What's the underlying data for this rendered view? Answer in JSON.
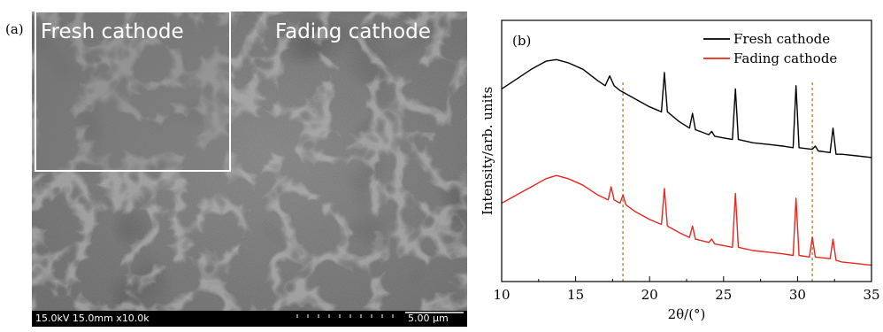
{
  "panel_a": {
    "label": "(a)",
    "inset_caption": "Fresh cathode",
    "main_caption": "Fading cathode",
    "scan_info": "15.0kV 15.0mm x10.0k",
    "scale_bar": "5.00 μm"
  },
  "chart_data": {
    "type": "line",
    "panel_label": "(b)",
    "xlabel": "2θ/(°)",
    "ylabel": "Intensity/arb. units",
    "xlim": [
      10,
      35
    ],
    "xticks": [
      10,
      15,
      20,
      25,
      30,
      35
    ],
    "grid": false,
    "legend_position": "top-right",
    "y_ticks_shown": false,
    "reference_lines_x": [
      18.2,
      31.0
    ],
    "series": [
      {
        "name": "Fresh cathode",
        "color": "#000000",
        "points": [
          [
            10,
            0.58
          ],
          [
            11,
            0.64
          ],
          [
            12,
            0.7
          ],
          [
            13,
            0.75
          ],
          [
            13.7,
            0.76
          ],
          [
            14.5,
            0.74
          ],
          [
            15.5,
            0.7
          ],
          [
            16.5,
            0.63
          ],
          [
            17,
            0.6
          ],
          [
            17.3,
            0.66
          ],
          [
            17.6,
            0.6
          ],
          [
            18,
            0.57
          ],
          [
            19,
            0.52
          ],
          [
            20,
            0.47
          ],
          [
            20.8,
            0.44
          ],
          [
            21,
            0.68
          ],
          [
            21.2,
            0.44
          ],
          [
            22,
            0.38
          ],
          [
            22.7,
            0.34
          ],
          [
            22.9,
            0.43
          ],
          [
            23.1,
            0.33
          ],
          [
            24,
            0.3
          ],
          [
            24.2,
            0.32
          ],
          [
            24.4,
            0.29
          ],
          [
            25,
            0.28
          ],
          [
            25.6,
            0.27
          ],
          [
            25.8,
            0.58
          ],
          [
            26,
            0.27
          ],
          [
            27,
            0.25
          ],
          [
            28,
            0.24
          ],
          [
            29,
            0.23
          ],
          [
            29.7,
            0.22
          ],
          [
            29.9,
            0.6
          ],
          [
            30.1,
            0.22
          ],
          [
            31,
            0.21
          ],
          [
            31.2,
            0.23
          ],
          [
            31.4,
            0.2
          ],
          [
            32.2,
            0.19
          ],
          [
            32.4,
            0.34
          ],
          [
            32.6,
            0.18
          ],
          [
            33,
            0.18
          ],
          [
            34,
            0.17
          ],
          [
            35,
            0.16
          ]
        ]
      },
      {
        "name": "Fading cathode",
        "color": "#e8271e",
        "points": [
          [
            10,
            -0.12
          ],
          [
            11,
            -0.07
          ],
          [
            12,
            -0.02
          ],
          [
            13,
            0.03
          ],
          [
            13.7,
            0.05
          ],
          [
            14.5,
            0.03
          ],
          [
            15.5,
            -0.01
          ],
          [
            16.5,
            -0.07
          ],
          [
            17.2,
            -0.1
          ],
          [
            17.4,
            -0.02
          ],
          [
            17.6,
            -0.1
          ],
          [
            18,
            -0.12
          ],
          [
            18.2,
            -0.07
          ],
          [
            18.4,
            -0.13
          ],
          [
            19,
            -0.17
          ],
          [
            20,
            -0.22
          ],
          [
            20.8,
            -0.25
          ],
          [
            21,
            -0.03
          ],
          [
            21.2,
            -0.26
          ],
          [
            22,
            -0.3
          ],
          [
            22.7,
            -0.33
          ],
          [
            22.9,
            -0.26
          ],
          [
            23.1,
            -0.34
          ],
          [
            24,
            -0.36
          ],
          [
            24.2,
            -0.34
          ],
          [
            24.4,
            -0.37
          ],
          [
            25,
            -0.38
          ],
          [
            25.6,
            -0.39
          ],
          [
            25.8,
            -0.06
          ],
          [
            26,
            -0.39
          ],
          [
            27,
            -0.41
          ],
          [
            28,
            -0.42
          ],
          [
            29,
            -0.43
          ],
          [
            29.7,
            -0.44
          ],
          [
            29.9,
            -0.09
          ],
          [
            30.1,
            -0.44
          ],
          [
            30.8,
            -0.45
          ],
          [
            31,
            -0.33
          ],
          [
            31.2,
            -0.45
          ],
          [
            32.2,
            -0.46
          ],
          [
            32.4,
            -0.34
          ],
          [
            32.6,
            -0.47
          ],
          [
            33,
            -0.48
          ],
          [
            34,
            -0.49
          ],
          [
            35,
            -0.5
          ]
        ]
      }
    ]
  }
}
